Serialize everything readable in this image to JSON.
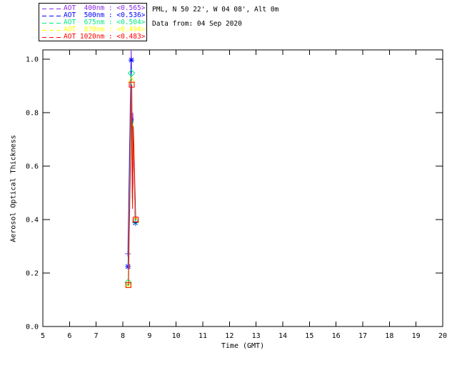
{
  "window": {
    "background": "#FFFFFF",
    "foreground": "#000000"
  },
  "chart_data": {
    "type": "line",
    "title_lines": [
      "PML, N 50 22', W 04 08', Alt 0m",
      "Data from: 04 Sep 2020"
    ],
    "xlabel": "Time (GMT)",
    "ylabel": "Aerosol Optical Thickness",
    "xlim": [
      5,
      20
    ],
    "ylim": [
      0,
      1.035
    ],
    "x_ticks": [
      "5",
      "6",
      "7",
      "8",
      "9",
      "10",
      "11",
      "12",
      "13",
      "14",
      "15",
      "16",
      "17",
      "18",
      "19",
      "20"
    ],
    "x_tick_values": [
      5,
      6,
      7,
      8,
      9,
      10,
      11,
      12,
      13,
      14,
      15,
      16,
      17,
      18,
      19,
      20
    ],
    "y_ticks": [
      "0.0",
      "0.2",
      "0.4",
      "0.6",
      "0.8",
      "1.0"
    ],
    "y_tick_values": [
      0.0,
      0.2,
      0.4,
      0.6,
      0.8,
      1.0
    ],
    "grid": false,
    "axis_color": "#000000",
    "legend": {
      "position": "top-left-outside",
      "entries": [
        {
          "label": "AOT  400nm",
          "value": "<0.565>",
          "color": "#8A2BE2"
        },
        {
          "label": "AOT  500nm",
          "value": "<0.536>",
          "color": "#0000FF"
        },
        {
          "label": "AOT  675nm",
          "value": "<0.504>",
          "color": "#00E87E"
        },
        {
          "label": "AOT  870nm",
          "value": "<0.494>",
          "color": "#FFFF00"
        },
        {
          "label": "AOT 1020nm",
          "value": "<0.483>",
          "color": "#FF0000"
        }
      ]
    },
    "series": [
      {
        "name": "AOT 400nm",
        "color": "#8A2BE2",
        "symbol": "plus",
        "symbol_at": [
          0,
          1,
          4
        ],
        "points": [
          [
            8.19,
            0.272
          ],
          [
            8.315,
            1.05
          ],
          [
            8.345,
            0.5
          ],
          [
            8.375,
            0.8
          ],
          [
            8.465,
            0.402
          ]
        ]
      },
      {
        "name": "AOT 500nm",
        "color": "#0000FF",
        "symbol": "asterisk",
        "symbol_at": [
          0,
          1,
          4
        ],
        "points": [
          [
            8.195,
            0.224
          ],
          [
            8.32,
            0.997
          ],
          [
            8.35,
            0.48
          ],
          [
            8.38,
            0.78
          ],
          [
            8.47,
            0.388
          ]
        ]
      },
      {
        "name": "AOT 675nm",
        "color": "#00E87E",
        "symbol": "diamond",
        "symbol_at": [
          0,
          1,
          4
        ],
        "points": [
          [
            8.2,
            0.165
          ],
          [
            8.325,
            0.948
          ],
          [
            8.355,
            0.465
          ],
          [
            8.385,
            0.77
          ],
          [
            8.475,
            0.394
          ]
        ]
      },
      {
        "name": "AOT 870nm",
        "color": "#FFFF00",
        "symbol": "triangle",
        "symbol_at": [
          0,
          1,
          4
        ],
        "points": [
          [
            8.205,
            0.158
          ],
          [
            8.33,
            0.922
          ],
          [
            8.36,
            0.452
          ],
          [
            8.39,
            0.76
          ],
          [
            8.48,
            0.4
          ]
        ]
      },
      {
        "name": "AOT 1020nm",
        "color": "#FF0000",
        "symbol": "square",
        "symbol_at": [
          0,
          1,
          4
        ],
        "points": [
          [
            8.21,
            0.155
          ],
          [
            8.335,
            0.905
          ],
          [
            8.365,
            0.44
          ],
          [
            8.395,
            0.75
          ],
          [
            8.485,
            0.4
          ]
        ]
      }
    ]
  }
}
